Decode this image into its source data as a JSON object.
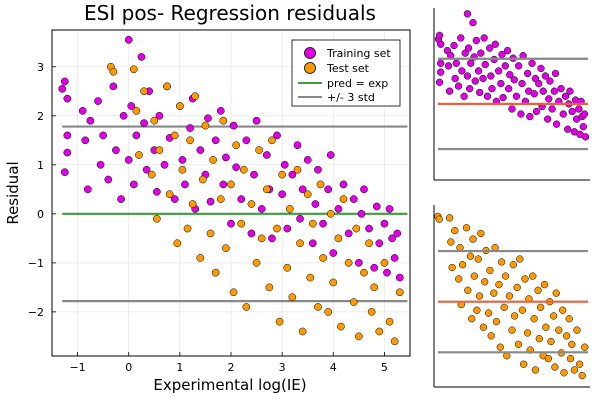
{
  "chart_data": [
    {
      "type": "scatter",
      "title": "ESI pos- Regression residuals",
      "xlabel": "Experimental log(IE)",
      "ylabel": "Residual",
      "xlim": [
        -1.5,
        5.5
      ],
      "ylim": [
        -2.9,
        3.75
      ],
      "xticks": [
        -1,
        0,
        1,
        2,
        3,
        4,
        5
      ],
      "xtick_labels": [
        "−1",
        "0",
        "1",
        "2",
        "3",
        "4",
        "5"
      ],
      "yticks": [
        -2,
        -1,
        0,
        1,
        2,
        3
      ],
      "ytick_labels": [
        "−2",
        "−1",
        "0",
        "1",
        "2",
        "3"
      ],
      "grid": true,
      "legend_position": "top-right",
      "series": [
        {
          "name": "Training set",
          "color": "#e100e6",
          "points": [
            [
              -1.3,
              2.55
            ],
            [
              -1.25,
              2.7
            ],
            [
              -1.2,
              2.35
            ],
            [
              -1.2,
              1.6
            ],
            [
              -1.25,
              0.85
            ],
            [
              -1.2,
              1.25
            ],
            [
              -0.9,
              2.1
            ],
            [
              -0.85,
              1.5
            ],
            [
              -0.8,
              0.5
            ],
            [
              -0.75,
              1.9
            ],
            [
              -0.6,
              2.3
            ],
            [
              -0.55,
              1.0
            ],
            [
              -0.5,
              1.6
            ],
            [
              -0.4,
              0.7
            ],
            [
              -0.3,
              2.6
            ],
            [
              -0.25,
              1.3
            ],
            [
              -0.15,
              0.3
            ],
            [
              -0.1,
              2.0
            ],
            [
              0.0,
              3.55
            ],
            [
              0.0,
              1.1
            ],
            [
              0.05,
              2.2
            ],
            [
              0.1,
              0.6
            ],
            [
              0.15,
              1.6
            ],
            [
              0.25,
              3.2
            ],
            [
              0.3,
              1.85
            ],
            [
              0.35,
              0.9
            ],
            [
              0.4,
              2.5
            ],
            [
              0.5,
              1.3
            ],
            [
              0.55,
              0.45
            ],
            [
              0.6,
              2.0
            ],
            [
              0.7,
              1.0
            ],
            [
              0.75,
              2.6
            ],
            [
              0.8,
              1.55
            ],
            [
              0.9,
              0.3
            ],
            [
              1.0,
              2.2
            ],
            [
              1.05,
              1.1
            ],
            [
              1.1,
              0.6
            ],
            [
              1.2,
              1.75
            ],
            [
              1.25,
              2.35
            ],
            [
              1.3,
              0.1
            ],
            [
              1.4,
              1.3
            ],
            [
              1.5,
              0.8
            ],
            [
              1.55,
              1.95
            ],
            [
              1.6,
              0.25
            ],
            [
              1.7,
              1.5
            ],
            [
              1.8,
              2.1
            ],
            [
              1.85,
              0.6
            ],
            [
              1.9,
              1.15
            ],
            [
              2.0,
              -0.2
            ],
            [
              2.05,
              1.8
            ],
            [
              2.1,
              0.95
            ],
            [
              2.2,
              0.3
            ],
            [
              2.3,
              1.5
            ],
            [
              2.4,
              -0.4
            ],
            [
              2.45,
              0.8
            ],
            [
              2.5,
              1.9
            ],
            [
              2.6,
              0.1
            ],
            [
              2.7,
              1.2
            ],
            [
              2.75,
              0.5
            ],
            [
              2.8,
              -0.5
            ],
            [
              2.9,
              1.6
            ],
            [
              3.0,
              0.4
            ],
            [
              3.05,
              1.0
            ],
            [
              3.1,
              -0.3
            ],
            [
              3.2,
              0.8
            ],
            [
              3.3,
              1.4
            ],
            [
              3.35,
              -0.1
            ],
            [
              3.4,
              0.5
            ],
            [
              3.5,
              1.1
            ],
            [
              3.6,
              -0.6
            ],
            [
              3.65,
              0.2
            ],
            [
              3.7,
              0.9
            ],
            [
              3.8,
              -0.2
            ],
            [
              3.9,
              0.5
            ],
            [
              3.95,
              1.2
            ],
            [
              4.0,
              -0.8
            ],
            [
              4.1,
              0.1
            ],
            [
              4.2,
              0.6
            ],
            [
              4.3,
              -0.4
            ],
            [
              4.4,
              0.3
            ],
            [
              4.5,
              -1.0
            ],
            [
              4.55,
              0.0
            ],
            [
              4.6,
              0.5
            ],
            [
              4.7,
              -0.3
            ],
            [
              4.8,
              -1.1
            ],
            [
              4.85,
              0.15
            ],
            [
              4.9,
              -0.6
            ],
            [
              5.0,
              -0.2
            ],
            [
              5.05,
              -1.2
            ],
            [
              5.1,
              0.1
            ],
            [
              5.15,
              -0.5
            ],
            [
              5.2,
              -0.9
            ],
            [
              5.25,
              -0.4
            ],
            [
              5.3,
              -1.3
            ]
          ]
        },
        {
          "name": "Test set",
          "color": "#ff9900",
          "points": [
            [
              -0.35,
              3.0
            ],
            [
              -0.3,
              2.9
            ],
            [
              0.1,
              2.95
            ],
            [
              0.15,
              2.1
            ],
            [
              0.2,
              1.2
            ],
            [
              0.3,
              2.5
            ],
            [
              0.45,
              0.8
            ],
            [
              0.5,
              1.9
            ],
            [
              0.55,
              -0.1
            ],
            [
              0.6,
              1.3
            ],
            [
              0.75,
              2.6
            ],
            [
              0.8,
              0.4
            ],
            [
              0.9,
              1.6
            ],
            [
              0.95,
              -0.6
            ],
            [
              1.0,
              2.2
            ],
            [
              1.05,
              0.9
            ],
            [
              1.15,
              -0.3
            ],
            [
              1.2,
              1.5
            ],
            [
              1.25,
              0.2
            ],
            [
              1.3,
              2.4
            ],
            [
              1.4,
              -0.9
            ],
            [
              1.45,
              0.7
            ],
            [
              1.5,
              1.8
            ],
            [
              1.6,
              -0.4
            ],
            [
              1.65,
              1.1
            ],
            [
              1.7,
              -1.2
            ],
            [
              1.8,
              0.3
            ],
            [
              1.85,
              1.9
            ],
            [
              1.9,
              -0.7
            ],
            [
              2.0,
              0.6
            ],
            [
              2.05,
              -1.6
            ],
            [
              2.1,
              1.4
            ],
            [
              2.2,
              -0.2
            ],
            [
              2.25,
              0.9
            ],
            [
              2.3,
              -1.9
            ],
            [
              2.4,
              0.2
            ],
            [
              2.5,
              -1.0
            ],
            [
              2.55,
              1.3
            ],
            [
              2.6,
              -0.5
            ],
            [
              2.7,
              0.5
            ],
            [
              2.75,
              -1.5
            ],
            [
              2.8,
              1.5
            ],
            [
              2.9,
              -0.3
            ],
            [
              2.95,
              -2.2
            ],
            [
              3.0,
              0.8
            ],
            [
              3.1,
              -1.1
            ],
            [
              3.15,
              0.1
            ],
            [
              3.2,
              -1.7
            ],
            [
              3.3,
              0.9
            ],
            [
              3.35,
              -0.6
            ],
            [
              3.4,
              -2.4
            ],
            [
              3.5,
              0.4
            ],
            [
              3.55,
              -1.3
            ],
            [
              3.6,
              -0.2
            ],
            [
              3.7,
              -1.9
            ],
            [
              3.75,
              0.6
            ],
            [
              3.8,
              -0.9
            ],
            [
              3.9,
              -2.0
            ],
            [
              3.95,
              0.0
            ],
            [
              4.0,
              -1.4
            ],
            [
              4.1,
              -0.5
            ],
            [
              4.15,
              -2.3
            ],
            [
              4.2,
              0.3
            ],
            [
              4.3,
              -1.0
            ],
            [
              4.4,
              -1.8
            ],
            [
              4.45,
              -0.3
            ],
            [
              4.5,
              -2.5
            ],
            [
              4.6,
              -1.2
            ],
            [
              4.7,
              -0.6
            ],
            [
              4.75,
              -2.0
            ],
            [
              4.8,
              -1.5
            ],
            [
              4.9,
              -2.4
            ],
            [
              5.0,
              -1.0
            ],
            [
              5.1,
              -2.2
            ],
            [
              5.2,
              -2.6
            ],
            [
              5.3,
              -1.6
            ]
          ]
        }
      ],
      "reference_lines": [
        {
          "name": "pred = exp",
          "color": "#3a9e3a",
          "y": 0
        },
        {
          "name": "+/- 3 std",
          "color": "#888888",
          "y_values": [
            1.78,
            -1.78
          ]
        }
      ]
    },
    {
      "type": "scatter",
      "panel": "inset-training",
      "title": "",
      "xlabel": "",
      "ylabel": "",
      "axes_visible": false,
      "series_ref": "Training set",
      "hlines": [
        {
          "color": "#888888",
          "y": 1.78
        },
        {
          "color": "#e8603c",
          "y": 0
        },
        {
          "color": "#888888",
          "y": -1.78
        }
      ]
    },
    {
      "type": "scatter",
      "panel": "inset-test",
      "title": "",
      "xlabel": "",
      "ylabel": "",
      "axes_visible": false,
      "series_ref": "Test set",
      "hlines": [
        {
          "color": "#888888",
          "y": 1.78
        },
        {
          "color": "#e8603c",
          "y": 0
        },
        {
          "color": "#888888",
          "y": -1.78
        }
      ]
    }
  ]
}
